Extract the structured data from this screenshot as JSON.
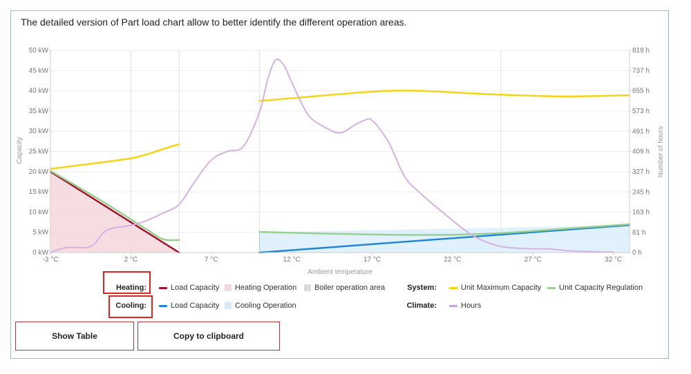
{
  "description": "The detailed version of Part load chart allow to better identify the different operation areas.",
  "chart_data": {
    "type": "line",
    "xlabel": "Ambient temperature",
    "ylabel_left": "Capacity",
    "ylabel_right": "Number of hours",
    "xlim": [
      -3,
      33
    ],
    "ylim_left": [
      0,
      50
    ],
    "ylim_right": [
      0,
      819
    ],
    "x_ticks": [
      "-3 °C",
      "2 °C",
      "7 °C",
      "12 °C",
      "17 °C",
      "22 °C",
      "27 °C",
      "32 °C"
    ],
    "x_tick_values": [
      -3,
      2,
      7,
      12,
      17,
      22,
      27,
      32
    ],
    "y_left_ticks": [
      "0 kW",
      "5 kW",
      "10 kW",
      "15 kW",
      "20 kW",
      "25 kW",
      "30 kW",
      "35 kW",
      "40 kW",
      "45 kW",
      "50 kW"
    ],
    "y_left_tick_values": [
      0,
      5,
      10,
      15,
      20,
      25,
      30,
      35,
      40,
      45,
      50
    ],
    "y_right_ticks": [
      "0 h",
      "81 h",
      "163 h",
      "245 h",
      "327 h",
      "409 h",
      "491 h",
      "573 h",
      "655 h",
      "737 h",
      "819 h"
    ],
    "y_right_tick_values": [
      0,
      81,
      163,
      245,
      327,
      409,
      491,
      573,
      655,
      737,
      819
    ],
    "vertical_gridlines": [
      2,
      5,
      10,
      25
    ],
    "series": [
      {
        "name": "Heating Load Capacity",
        "axis": "left",
        "color": "#a3132b",
        "x": [
          -3,
          5
        ],
        "y": [
          20,
          0
        ]
      },
      {
        "name": "Heating Operation",
        "axis": "left",
        "kind": "area",
        "color": "#f3d7dc",
        "x": [
          -3,
          5
        ],
        "y": [
          20,
          0
        ]
      },
      {
        "name": "Unit Maximum Capacity (heating)",
        "axis": "left",
        "color": "#f5d316",
        "x": [
          -3,
          0,
          2,
          3,
          4,
          5
        ],
        "y": [
          20.7,
          22.2,
          23.3,
          24.3,
          25.6,
          26.8
        ]
      },
      {
        "name": "Unit Capacity Regulation (heating)",
        "axis": "left",
        "color": "#98cf8e",
        "x": [
          -3,
          0,
          2,
          3,
          4,
          5
        ],
        "y": [
          20.2,
          13.2,
          8.2,
          5.7,
          3.3,
          3.1
        ]
      },
      {
        "name": "Cooling Load Capacity",
        "axis": "left",
        "color": "#1f86d5",
        "x": [
          10,
          33
        ],
        "y": [
          0,
          6.8
        ]
      },
      {
        "name": "Cooling Operation",
        "axis": "left",
        "kind": "area",
        "color": "#dceefa",
        "x": [
          10,
          33
        ],
        "y": [
          5,
          6.8
        ]
      },
      {
        "name": "Unit Maximum Capacity (cooling)",
        "axis": "left",
        "color": "#f5d316",
        "x": [
          10,
          13,
          16,
          18,
          20,
          23,
          26,
          29,
          33
        ],
        "y": [
          37.5,
          38.5,
          39.5,
          40.0,
          40.0,
          39.4,
          38.9,
          38.6,
          38.9
        ]
      },
      {
        "name": "Unit Capacity Regulation (cooling)",
        "axis": "left",
        "color": "#98cf8e",
        "x": [
          10,
          14,
          18,
          22,
          25,
          29,
          33
        ],
        "y": [
          5.1,
          4.7,
          4.4,
          4.4,
          4.8,
          5.9,
          7.0
        ]
      },
      {
        "name": "Hours",
        "axis": "right",
        "color": "#d5b1e3",
        "x": [
          -3,
          -2,
          -0.5,
          0.5,
          2,
          3,
          4,
          5,
          6,
          7,
          8,
          9,
          10,
          10.5,
          11,
          11.5,
          12,
          13,
          14,
          15,
          16,
          16.5,
          17,
          18,
          19,
          20,
          22,
          23,
          24,
          25,
          26,
          27,
          28,
          29,
          30,
          31,
          32
        ],
        "y": [
          0,
          20,
          25,
          90,
          110,
          130,
          160,
          195,
          290,
          375,
          410,
          430,
          570,
          700,
          780,
          760,
          690,
          560,
          510,
          485,
          520,
          535,
          535,
          450,
          310,
          240,
          130,
          80,
          45,
          25,
          18,
          15,
          15,
          8,
          5,
          3,
          2
        ]
      }
    ]
  },
  "legend": {
    "heating_label": "Heating:",
    "cooling_label": "Cooling:",
    "system_label": "System:",
    "climate_label": "Climate:",
    "heating_load": "Load Capacity",
    "heating_operation": "Heating Operation",
    "boiler_area": "Boiler operation area",
    "cooling_load": "Load Capacity",
    "cooling_operation": "Cooling Operation",
    "unit_max": "Unit Maximum Capacity",
    "unit_regulation": "Unit Capacity Regulation",
    "hours": "Hours",
    "colors": {
      "heating_load": "#a3132b",
      "heating_operation": "#f3d7dc",
      "boiler_area": "#dcdcdc",
      "cooling_load": "#1f86d5",
      "cooling_operation": "#d6ebfa",
      "unit_max": "#f5d316",
      "unit_regulation": "#98cf8e",
      "hours": "#c9a3dc",
      "highlight": "#e0231c"
    }
  },
  "buttons": {
    "show_table": "Show Table",
    "copy": "Copy to clipboard"
  }
}
